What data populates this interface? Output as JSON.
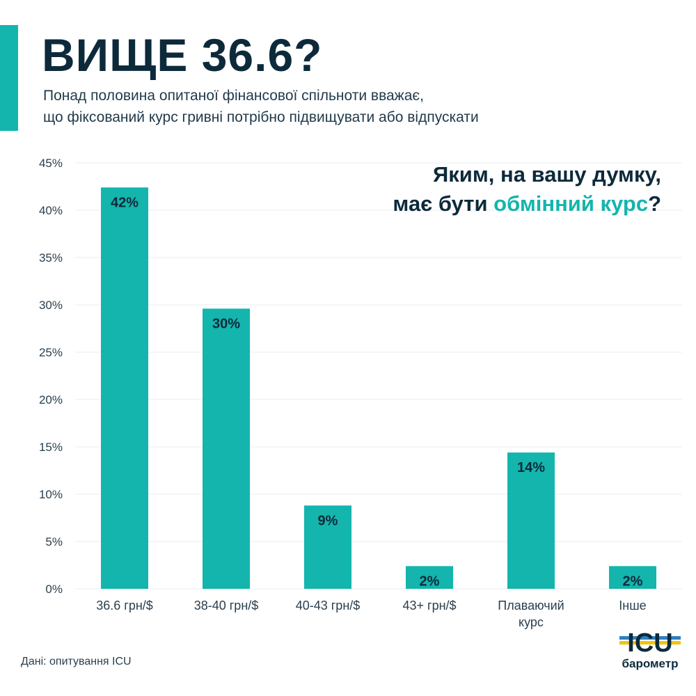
{
  "header": {
    "title": "ВИЩЕ 36.6?",
    "subtitle_lines": [
      "Понад половина опитаної фінансової спільноти вважає,",
      "що фіксований курс гривні потрібно підвищувати або відпускати"
    ]
  },
  "question": {
    "line1": "Яким, на вашу думку,",
    "line2_prefix": "має бути ",
    "line2_highlight": "обмінний курс",
    "line2_suffix": "?"
  },
  "chart_data": {
    "type": "bar",
    "categories": [
      [
        "36.6 грн/$"
      ],
      [
        "38-40 грн/$"
      ],
      [
        "40-43 грн/$"
      ],
      [
        "43+ грн/$"
      ],
      [
        "Плаваючий",
        "курс"
      ],
      [
        "Інше"
      ]
    ],
    "values": [
      42.4,
      29.6,
      8.8,
      2.4,
      14.4,
      2.4
    ],
    "data_labels": [
      "42%",
      "30%",
      "9%",
      "2%",
      "14%",
      "2%"
    ],
    "ylim": [
      0,
      45
    ],
    "yticks": [
      0,
      5,
      10,
      15,
      20,
      25,
      30,
      35,
      40,
      45
    ],
    "ytick_labels": [
      "0%",
      "5%",
      "10%",
      "15%",
      "20%",
      "25%",
      "30%",
      "35%",
      "40%",
      "45%"
    ],
    "grid": true,
    "legend": "none"
  },
  "colors": {
    "accent": "#13b5ad",
    "text_dark": "#0d2a3b",
    "grid": "#e9eef0"
  },
  "footer": {
    "source": "Дані: опитування ICU",
    "logo_mark": "ICU",
    "logo_text": "барометр"
  }
}
